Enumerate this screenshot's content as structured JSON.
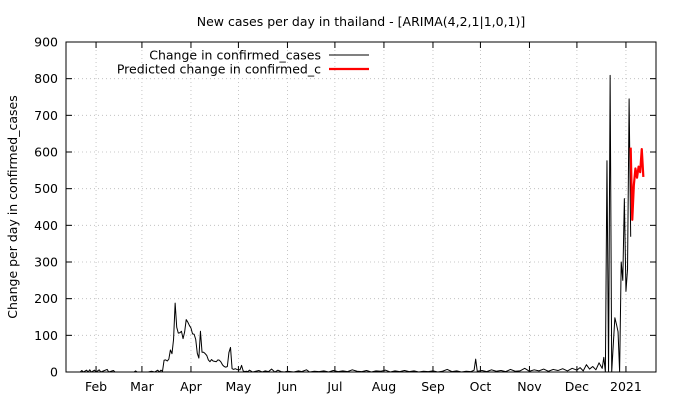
{
  "chart_data": {
    "type": "line",
    "title": "New cases per day in thailand -  [ARIMA(4,2,1|1,0,1)]",
    "xlabel": "",
    "ylabel": "Change per day in confirmed_cases",
    "ylim": [
      0,
      900
    ],
    "xlim": [
      "2020-01-13",
      "2021-01-20"
    ],
    "grid": true,
    "legend_position": "top-left",
    "y_ticks": [
      0,
      100,
      200,
      300,
      400,
      500,
      600,
      700,
      800,
      900
    ],
    "x_ticks": [
      {
        "label": "Feb",
        "date": "2020-02-01"
      },
      {
        "label": "Mar",
        "date": "2020-03-01"
      },
      {
        "label": "Apr",
        "date": "2020-04-01"
      },
      {
        "label": "May",
        "date": "2020-05-01"
      },
      {
        "label": "Jun",
        "date": "2020-06-01"
      },
      {
        "label": "Jul",
        "date": "2020-07-01"
      },
      {
        "label": "Aug",
        "date": "2020-08-01"
      },
      {
        "label": "Sep",
        "date": "2020-09-01"
      },
      {
        "label": "Oct",
        "date": "2020-10-01"
      },
      {
        "label": "Nov",
        "date": "2020-11-01"
      },
      {
        "label": "Dec",
        "date": "2020-12-01"
      },
      {
        "label": "2021",
        "date": "2021-01-01"
      }
    ],
    "series": [
      {
        "name": "Change in confirmed_cases",
        "color": "#000000",
        "points": [
          [
            "2020-01-22",
            0
          ],
          [
            "2020-01-23",
            4
          ],
          [
            "2020-01-24",
            0
          ],
          [
            "2020-01-26",
            5
          ],
          [
            "2020-01-27",
            0
          ],
          [
            "2020-01-28",
            6
          ],
          [
            "2020-01-29",
            0
          ],
          [
            "2020-01-31",
            5
          ],
          [
            "2020-02-01",
            0
          ],
          [
            "2020-02-03",
            6
          ],
          [
            "2020-02-04",
            0
          ],
          [
            "2020-02-08",
            7
          ],
          [
            "2020-02-09",
            0
          ],
          [
            "2020-02-12",
            4
          ],
          [
            "2020-02-13",
            0
          ],
          [
            "2020-02-25",
            0
          ],
          [
            "2020-02-26",
            3
          ],
          [
            "2020-02-27",
            0
          ],
          [
            "2020-03-05",
            0
          ],
          [
            "2020-03-07",
            2
          ],
          [
            "2020-03-09",
            0
          ],
          [
            "2020-03-11",
            5
          ],
          [
            "2020-03-12",
            0
          ],
          [
            "2020-03-13",
            5
          ],
          [
            "2020-03-14",
            2
          ],
          [
            "2020-03-15",
            32
          ],
          [
            "2020-03-16",
            33
          ],
          [
            "2020-03-17",
            30
          ],
          [
            "2020-03-18",
            35
          ],
          [
            "2020-03-19",
            60
          ],
          [
            "2020-03-20",
            50
          ],
          [
            "2020-03-21",
            89
          ],
          [
            "2020-03-22",
            188
          ],
          [
            "2020-03-23",
            122
          ],
          [
            "2020-03-24",
            106
          ],
          [
            "2020-03-25",
            107
          ],
          [
            "2020-03-26",
            111
          ],
          [
            "2020-03-27",
            91
          ],
          [
            "2020-03-28",
            109
          ],
          [
            "2020-03-29",
            143
          ],
          [
            "2020-03-30",
            136
          ],
          [
            "2020-03-31",
            127
          ],
          [
            "2020-04-01",
            120
          ],
          [
            "2020-04-02",
            104
          ],
          [
            "2020-04-03",
            103
          ],
          [
            "2020-04-04",
            89
          ],
          [
            "2020-04-05",
            51
          ],
          [
            "2020-04-06",
            38
          ],
          [
            "2020-04-07",
            111
          ],
          [
            "2020-04-08",
            54
          ],
          [
            "2020-04-09",
            54
          ],
          [
            "2020-04-10",
            50
          ],
          [
            "2020-04-11",
            45
          ],
          [
            "2020-04-12",
            33
          ],
          [
            "2020-04-13",
            28
          ],
          [
            "2020-04-14",
            34
          ],
          [
            "2020-04-15",
            30
          ],
          [
            "2020-04-16",
            29
          ],
          [
            "2020-04-17",
            28
          ],
          [
            "2020-04-18",
            33
          ],
          [
            "2020-04-19",
            32
          ],
          [
            "2020-04-20",
            27
          ],
          [
            "2020-04-21",
            19
          ],
          [
            "2020-04-22",
            15
          ],
          [
            "2020-04-23",
            13
          ],
          [
            "2020-04-24",
            15
          ],
          [
            "2020-04-25",
            53
          ],
          [
            "2020-04-26",
            67
          ],
          [
            "2020-04-27",
            9
          ],
          [
            "2020-04-28",
            7
          ],
          [
            "2020-04-29",
            9
          ],
          [
            "2020-04-30",
            7
          ],
          [
            "2020-05-01",
            6
          ],
          [
            "2020-05-02",
            6
          ],
          [
            "2020-05-03",
            18
          ],
          [
            "2020-05-04",
            3
          ],
          [
            "2020-05-05",
            1
          ],
          [
            "2020-05-06",
            2
          ],
          [
            "2020-05-07",
            1
          ],
          [
            "2020-05-08",
            5
          ],
          [
            "2020-05-10",
            0
          ],
          [
            "2020-05-12",
            2
          ],
          [
            "2020-05-14",
            4
          ],
          [
            "2020-05-16",
            0
          ],
          [
            "2020-05-18",
            3
          ],
          [
            "2020-05-20",
            1
          ],
          [
            "2020-05-22",
            8
          ],
          [
            "2020-05-24",
            0
          ],
          [
            "2020-05-26",
            5
          ],
          [
            "2020-05-28",
            1
          ],
          [
            "2020-05-30",
            0
          ],
          [
            "2020-06-01",
            2
          ],
          [
            "2020-06-03",
            1
          ],
          [
            "2020-06-05",
            0
          ],
          [
            "2020-06-08",
            3
          ],
          [
            "2020-06-10",
            1
          ],
          [
            "2020-06-13",
            6
          ],
          [
            "2020-06-15",
            0
          ],
          [
            "2020-06-18",
            2
          ],
          [
            "2020-06-21",
            1
          ],
          [
            "2020-06-24",
            3
          ],
          [
            "2020-06-27",
            0
          ],
          [
            "2020-06-30",
            4
          ],
          [
            "2020-07-03",
            1
          ],
          [
            "2020-07-06",
            3
          ],
          [
            "2020-07-09",
            1
          ],
          [
            "2020-07-12",
            6
          ],
          [
            "2020-07-15",
            2
          ],
          [
            "2020-07-18",
            1
          ],
          [
            "2020-07-21",
            4
          ],
          [
            "2020-07-24",
            0
          ],
          [
            "2020-07-27",
            3
          ],
          [
            "2020-07-30",
            2
          ],
          [
            "2020-08-02",
            5
          ],
          [
            "2020-08-05",
            0
          ],
          [
            "2020-08-08",
            3
          ],
          [
            "2020-08-11",
            1
          ],
          [
            "2020-08-14",
            4
          ],
          [
            "2020-08-17",
            1
          ],
          [
            "2020-08-20",
            3
          ],
          [
            "2020-08-23",
            0
          ],
          [
            "2020-08-26",
            2
          ],
          [
            "2020-08-29",
            1
          ],
          [
            "2020-09-01",
            3
          ],
          [
            "2020-09-04",
            0
          ],
          [
            "2020-09-07",
            2
          ],
          [
            "2020-09-10",
            7
          ],
          [
            "2020-09-13",
            1
          ],
          [
            "2020-09-16",
            3
          ],
          [
            "2020-09-19",
            0
          ],
          [
            "2020-09-22",
            2
          ],
          [
            "2020-09-25",
            1
          ],
          [
            "2020-09-27",
            5
          ],
          [
            "2020-09-28",
            35
          ],
          [
            "2020-09-29",
            2
          ],
          [
            "2020-10-02",
            4
          ],
          [
            "2020-10-05",
            1
          ],
          [
            "2020-10-08",
            6
          ],
          [
            "2020-10-11",
            2
          ],
          [
            "2020-10-14",
            4
          ],
          [
            "2020-10-17",
            1
          ],
          [
            "2020-10-20",
            7
          ],
          [
            "2020-10-23",
            2
          ],
          [
            "2020-10-26",
            3
          ],
          [
            "2020-10-29",
            10
          ],
          [
            "2020-11-01",
            2
          ],
          [
            "2020-11-04",
            6
          ],
          [
            "2020-11-07",
            3
          ],
          [
            "2020-11-10",
            8
          ],
          [
            "2020-11-13",
            2
          ],
          [
            "2020-11-16",
            7
          ],
          [
            "2020-11-19",
            4
          ],
          [
            "2020-11-22",
            9
          ],
          [
            "2020-11-25",
            3
          ],
          [
            "2020-11-28",
            10
          ],
          [
            "2020-12-01",
            5
          ],
          [
            "2020-12-03",
            12
          ],
          [
            "2020-12-05",
            3
          ],
          [
            "2020-12-07",
            20
          ],
          [
            "2020-12-09",
            8
          ],
          [
            "2020-12-11",
            15
          ],
          [
            "2020-12-13",
            6
          ],
          [
            "2020-12-15",
            25
          ],
          [
            "2020-12-17",
            10
          ],
          [
            "2020-12-18",
            40
          ],
          [
            "2020-12-19",
            0
          ],
          [
            "2020-12-20",
            576
          ],
          [
            "2020-12-21",
            0
          ],
          [
            "2020-12-22",
            809
          ],
          [
            "2020-12-23",
            0
          ],
          [
            "2020-12-24",
            75
          ],
          [
            "2020-12-25",
            148
          ],
          [
            "2020-12-26",
            130
          ],
          [
            "2020-12-27",
            110
          ],
          [
            "2020-12-28",
            0
          ],
          [
            "2020-12-29",
            300
          ],
          [
            "2020-12-30",
            250
          ],
          [
            "2020-12-31",
            473
          ],
          [
            "2021-01-01",
            220
          ],
          [
            "2021-01-02",
            280
          ],
          [
            "2021-01-03",
            745
          ],
          [
            "2021-01-04",
            369
          ]
        ]
      },
      {
        "name": "Predicted change in confirmed_c",
        "color": "#ff0000",
        "points": [
          [
            "2021-01-04",
            612
          ],
          [
            "2021-01-05",
            415
          ],
          [
            "2021-01-06",
            510
          ],
          [
            "2021-01-07",
            555
          ],
          [
            "2021-01-08",
            530
          ],
          [
            "2021-01-09",
            560
          ],
          [
            "2021-01-10",
            545
          ],
          [
            "2021-01-11",
            608
          ],
          [
            "2021-01-12",
            532
          ]
        ]
      }
    ]
  }
}
